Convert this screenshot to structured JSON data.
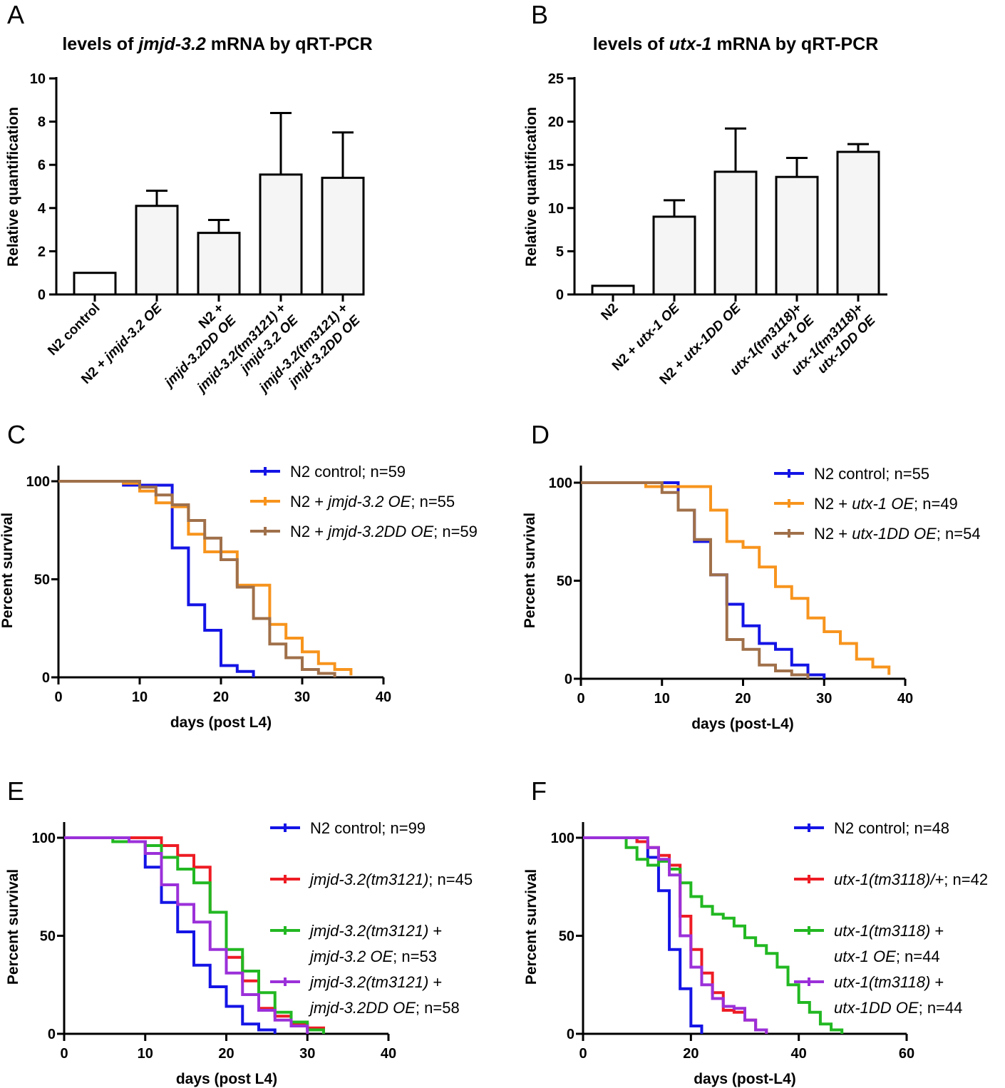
{
  "panels": {
    "A": {
      "letter": "A",
      "title": "levels of jmjd-3.2 mRNA by qRT-PCR",
      "ylabel": "Relative quantification"
    },
    "B": {
      "letter": "B",
      "title": "levels of utx-1 mRNA by qRT-PCR",
      "ylabel": "Relative quantification"
    },
    "C": {
      "letter": "C",
      "xlabel": "days (post L4)",
      "ylabel": "Percent survival"
    },
    "D": {
      "letter": "D",
      "xlabel": "days (post-L4)",
      "ylabel": "Percent survival"
    },
    "E": {
      "letter": "E",
      "xlabel": "days (post L4)",
      "ylabel": "Percent survival"
    },
    "F": {
      "letter": "F",
      "xlabel": "days (post-L4)",
      "ylabel": "Percent survival"
    }
  },
  "colors": {
    "blue": "#1414e6",
    "orange": "#f7941d",
    "brown": "#a0704a",
    "red": "#ee1c24",
    "green": "#22b822",
    "purple": "#9b30d9",
    "bar_fill": "#f5f5f5"
  },
  "chart_data": [
    {
      "id": "A",
      "type": "bar",
      "title": "levels of jmjd-3.2 mRNA by qRT-PCR",
      "ylabel": "Relative quantification",
      "ylim": [
        0,
        10
      ],
      "yticks": [
        "0",
        "2",
        "4",
        "6",
        "8",
        "10"
      ],
      "categories": [
        [
          "N2 control"
        ],
        [
          "N2 + jmjd-3.2 OE"
        ],
        [
          "N2 +",
          "jmjd-3.2DD OE"
        ],
        [
          "jmjd-3.2(tm3121) +",
          "jmjd-3.2 OE"
        ],
        [
          "jmjd-3.2(tm3121) +",
          "jmjd-3.2DD OE"
        ]
      ],
      "values": [
        1.0,
        4.1,
        2.85,
        5.55,
        5.4
      ],
      "errors": [
        0,
        0.7,
        0.6,
        2.85,
        2.1
      ]
    },
    {
      "id": "B",
      "type": "bar",
      "title": "levels of utx-1 mRNA by qRT-PCR",
      "ylabel": "Relative quantification",
      "ylim": [
        0,
        25
      ],
      "yticks": [
        "0",
        "5",
        "10",
        "15",
        "20",
        "25"
      ],
      "categories": [
        [
          "N2"
        ],
        [
          "N2 + utx-1 OE"
        ],
        [
          "N2 + utx-1DD OE"
        ],
        [
          "utx-1(tm3118)+",
          "utx-1 OE"
        ],
        [
          "utx-1(tm3118)+",
          "utx-1DD OE"
        ]
      ],
      "values": [
        1.0,
        9.0,
        14.2,
        13.6,
        16.5
      ],
      "errors": [
        0,
        1.9,
        5.0,
        2.2,
        0.9
      ]
    },
    {
      "id": "C",
      "type": "line",
      "xlabel": "days (post L4)",
      "ylabel": "Percent survival",
      "xlim": [
        0,
        40
      ],
      "ylim": [
        0,
        100
      ],
      "xticks": [
        "0",
        "10",
        "20",
        "30",
        "40"
      ],
      "yticks": [
        "0",
        "50",
        "100"
      ],
      "series": [
        {
          "name": "N2 control; n=59",
          "color": "#1414e6",
          "steps": [
            [
              0,
              100
            ],
            [
              8,
              98
            ],
            [
              14,
              95
            ],
            [
              14,
              66
            ],
            [
              16,
              37
            ],
            [
              18,
              24
            ],
            [
              20,
              6
            ],
            [
              22,
              3
            ],
            [
              24,
              0
            ]
          ]
        },
        {
          "name": "N2 + jmjd-3.2 OE; n=55",
          "color": "#f7941d",
          "steps": [
            [
              0,
              100
            ],
            [
              8,
              99
            ],
            [
              10,
              95
            ],
            [
              12,
              89
            ],
            [
              14,
              87
            ],
            [
              16,
              73
            ],
            [
              18,
              64
            ],
            [
              20,
              64
            ],
            [
              22,
              47
            ],
            [
              24,
              47
            ],
            [
              26,
              27
            ],
            [
              28,
              20
            ],
            [
              30,
              13
            ],
            [
              32,
              7
            ],
            [
              34,
              4
            ],
            [
              36,
              1
            ]
          ]
        },
        {
          "name": "N2 + jmjd-3.2DD OE; n=59",
          "color": "#a0704a",
          "steps": [
            [
              0,
              100
            ],
            [
              8,
              100
            ],
            [
              10,
              97
            ],
            [
              12,
              93
            ],
            [
              14,
              88
            ],
            [
              16,
              80
            ],
            [
              18,
              71
            ],
            [
              20,
              60
            ],
            [
              22,
              46
            ],
            [
              24,
              30
            ],
            [
              26,
              17
            ],
            [
              28,
              10
            ],
            [
              30,
              4
            ],
            [
              32,
              2
            ],
            [
              34,
              0
            ]
          ]
        }
      ]
    },
    {
      "id": "D",
      "type": "line",
      "xlabel": "days (post-L4)",
      "ylabel": "Percent survival",
      "xlim": [
        0,
        40
      ],
      "ylim": [
        0,
        100
      ],
      "xticks": [
        "0",
        "10",
        "20",
        "30",
        "40"
      ],
      "yticks": [
        "0",
        "50",
        "100"
      ],
      "series": [
        {
          "name": "N2 control; n=55",
          "color": "#1414e6",
          "steps": [
            [
              0,
              100
            ],
            [
              10,
              100
            ],
            [
              12,
              86
            ],
            [
              14,
              70
            ],
            [
              16,
              53
            ],
            [
              18,
              38
            ],
            [
              20,
              27
            ],
            [
              22,
              18
            ],
            [
              24,
              15
            ],
            [
              26,
              7
            ],
            [
              28,
              2
            ],
            [
              30,
              0
            ]
          ]
        },
        {
          "name": "N2 + utx-1 OE; n=49",
          "color": "#f7941d",
          "steps": [
            [
              0,
              100
            ],
            [
              8,
              98
            ],
            [
              14,
              98
            ],
            [
              16,
              86
            ],
            [
              18,
              70
            ],
            [
              20,
              67
            ],
            [
              22,
              57
            ],
            [
              24,
              47
            ],
            [
              26,
              41
            ],
            [
              28,
              31
            ],
            [
              30,
              24
            ],
            [
              32,
              18
            ],
            [
              34,
              10
            ],
            [
              36,
              6
            ],
            [
              38,
              2
            ]
          ]
        },
        {
          "name": "N2 + utx-1DD OE; n=54",
          "color": "#a0704a",
          "steps": [
            [
              0,
              100
            ],
            [
              10,
              95
            ],
            [
              12,
              86
            ],
            [
              14,
              71
            ],
            [
              16,
              53
            ],
            [
              18,
              20
            ],
            [
              20,
              15
            ],
            [
              22,
              7
            ],
            [
              24,
              4
            ],
            [
              26,
              2
            ],
            [
              28,
              0
            ]
          ]
        }
      ]
    },
    {
      "id": "E",
      "type": "line",
      "xlabel": "days (post L4)",
      "ylabel": "Percent survival",
      "xlim": [
        0,
        40
      ],
      "ylim": [
        0,
        100
      ],
      "xticks": [
        "0",
        "10",
        "20",
        "30",
        "40"
      ],
      "yticks": [
        "0",
        "50",
        "100"
      ],
      "series": [
        {
          "name": "N2 control; n=99",
          "color": "#1414e6",
          "steps": [
            [
              0,
              100
            ],
            [
              8,
              98
            ],
            [
              10,
              85
            ],
            [
              12,
              67
            ],
            [
              14,
              52
            ],
            [
              16,
              35
            ],
            [
              18,
              24
            ],
            [
              20,
              14
            ],
            [
              22,
              5
            ],
            [
              24,
              2
            ],
            [
              26,
              0
            ]
          ]
        },
        {
          "name": "jmjd-3.2(tm3121); n=45",
          "color": "#ee1c24",
          "steps": [
            [
              0,
              100
            ],
            [
              6,
              100
            ],
            [
              12,
              96
            ],
            [
              14,
              91
            ],
            [
              16,
              85
            ],
            [
              18,
              62
            ],
            [
              20,
              39
            ],
            [
              22,
              27
            ],
            [
              24,
              13
            ],
            [
              26,
              9
            ],
            [
              28,
              5
            ],
            [
              30,
              3
            ],
            [
              32,
              0
            ]
          ]
        },
        {
          "name": "jmjd-3.2(tm3121) + jmjd-3.2 OE; n=53",
          "color": "#22b822",
          "steps": [
            [
              0,
              100
            ],
            [
              6,
              98
            ],
            [
              10,
              96
            ],
            [
              12,
              90
            ],
            [
              14,
              84
            ],
            [
              16,
              77
            ],
            [
              18,
              62
            ],
            [
              20,
              43
            ],
            [
              22,
              32
            ],
            [
              24,
              21
            ],
            [
              26,
              11
            ],
            [
              28,
              6
            ],
            [
              30,
              2
            ],
            [
              32,
              0
            ]
          ]
        },
        {
          "name": "jmjd-3.2(tm3121) + jmjd-3.2DD OE; n=58",
          "color": "#9b30d9",
          "steps": [
            [
              0,
              100
            ],
            [
              8,
              98
            ],
            [
              10,
              92
            ],
            [
              12,
              76
            ],
            [
              14,
              66
            ],
            [
              16,
              57
            ],
            [
              18,
              43
            ],
            [
              20,
              31
            ],
            [
              22,
              20
            ],
            [
              24,
              12
            ],
            [
              26,
              7
            ],
            [
              28,
              4
            ],
            [
              30,
              0
            ]
          ]
        }
      ]
    },
    {
      "id": "F",
      "type": "line",
      "xlabel": "days (post-L4)",
      "ylabel": "Percent survival",
      "xlim": [
        0,
        60
      ],
      "ylim": [
        0,
        100
      ],
      "xticks": [
        "0",
        "20",
        "40",
        "60"
      ],
      "yticks": [
        "0",
        "50",
        "100"
      ],
      "series": [
        {
          "name": "N2 control; n=48",
          "color": "#1414e6",
          "steps": [
            [
              0,
              100
            ],
            [
              10,
              98
            ],
            [
              12,
              90
            ],
            [
              14,
              73
            ],
            [
              16,
              43
            ],
            [
              18,
              23
            ],
            [
              20,
              4
            ],
            [
              22,
              0
            ]
          ]
        },
        {
          "name": "utx-1(tm3118)/+; n=42",
          "color": "#ee1c24",
          "steps": [
            [
              0,
              100
            ],
            [
              10,
              98
            ],
            [
              12,
              95
            ],
            [
              14,
              91
            ],
            [
              16,
              86
            ],
            [
              18,
              60
            ],
            [
              20,
              43
            ],
            [
              22,
              31
            ],
            [
              24,
              21
            ],
            [
              26,
              12
            ],
            [
              28,
              11
            ],
            [
              30,
              7
            ],
            [
              32,
              2
            ],
            [
              34,
              0
            ]
          ]
        },
        {
          "name": "utx-1(tm3118) + utx-1 OE; n=44",
          "color": "#22b822",
          "steps": [
            [
              0,
              100
            ],
            [
              8,
              95
            ],
            [
              10,
              89
            ],
            [
              12,
              86
            ],
            [
              14,
              88
            ],
            [
              16,
              84
            ],
            [
              18,
              77
            ],
            [
              20,
              70
            ],
            [
              22,
              65
            ],
            [
              24,
              61
            ],
            [
              26,
              59
            ],
            [
              28,
              55
            ],
            [
              30,
              49
            ],
            [
              32,
              45
            ],
            [
              34,
              41
            ],
            [
              36,
              34
            ],
            [
              38,
              25
            ],
            [
              40,
              16
            ],
            [
              42,
              11
            ],
            [
              44,
              5
            ],
            [
              46,
              2
            ],
            [
              48,
              0
            ]
          ]
        },
        {
          "name": "utx-1(tm3118) + utx-1DD OE; n=44",
          "color": "#9b30d9",
          "steps": [
            [
              0,
              100
            ],
            [
              12,
              95
            ],
            [
              14,
              89
            ],
            [
              16,
              81
            ],
            [
              18,
              50
            ],
            [
              20,
              34
            ],
            [
              22,
              25
            ],
            [
              24,
              18
            ],
            [
              26,
              14
            ],
            [
              28,
              13
            ],
            [
              30,
              7
            ],
            [
              32,
              2
            ],
            [
              34,
              0
            ]
          ]
        }
      ]
    }
  ]
}
